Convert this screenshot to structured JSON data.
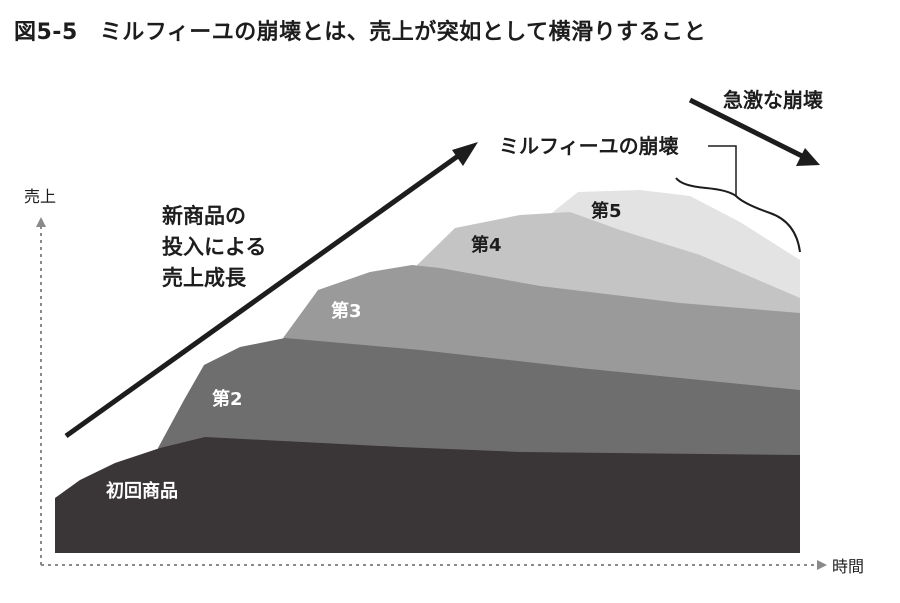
{
  "figure": {
    "number": "図5-5",
    "title": "ミルフィーユの崩壊とは、売上が突如として横滑りすること"
  },
  "axes": {
    "y_label": "売上",
    "x_label": "時間"
  },
  "layers": [
    {
      "label": "初回商品",
      "color": "#3a3536",
      "label_color": "#ffffff"
    },
    {
      "label": "第2",
      "color": "#6e6e6e",
      "label_color": "#ffffff"
    },
    {
      "label": "第3",
      "color": "#9a9a9a",
      "label_color": "#ffffff"
    },
    {
      "label": "第4",
      "color": "#c4c4c4",
      "label_color": "#1d1d1d"
    },
    {
      "label": "第5",
      "color": "#e3e3e3",
      "label_color": "#1d1d1d"
    }
  ],
  "annotations": {
    "growth_line1": "新商品の",
    "growth_line2": "投入による",
    "growth_line3": "売上成長",
    "collapse_label": "ミルフィーユの崩壊",
    "sudden_collapse": "急激な崩壊"
  },
  "colors": {
    "text": "#1d1d1d",
    "arrow": "#1d1d1d",
    "axis": "#8a8a8a"
  }
}
